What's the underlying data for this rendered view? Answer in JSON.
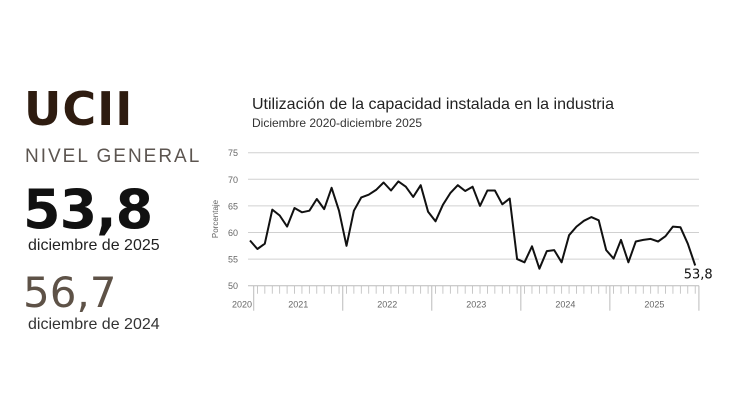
{
  "panel": {
    "brand": "UCII",
    "level_label": "NIVEL GENERAL",
    "current_value": "53,8",
    "current_period": "diciembre de 2025",
    "previous_value": "56,7",
    "previous_period": "diciembre de 2024"
  },
  "colors": {
    "brand": "#2e1c10",
    "line": "#111111",
    "grid": "#d0d0d0",
    "previous": "#5e5247"
  },
  "chart_data": {
    "type": "line",
    "title": "Utilización de la capacidad instalada en la industria",
    "subtitle": "Diciembre 2020-diciembre 2025",
    "ylabel": "Porcentaje",
    "xlabel": "",
    "ylim": [
      50,
      75
    ],
    "yticks": [
      "50",
      "55",
      "60",
      "65",
      "70",
      "75"
    ],
    "year_labels": [
      "2020",
      "2021",
      "2022",
      "2023",
      "2024",
      "2025"
    ],
    "grid": true,
    "x_start": "2020-12",
    "x_end": "2025-12",
    "frequency": "monthly",
    "end_label": "53,8",
    "values": [
      58.5,
      56.9,
      57.9,
      64.3,
      63.2,
      61.1,
      64.6,
      63.8,
      64.1,
      66.3,
      64.4,
      68.4,
      64.1,
      57.5,
      64.1,
      66.6,
      67.1,
      68.0,
      69.4,
      67.9,
      69.6,
      68.6,
      66.7,
      68.9,
      63.9,
      62.1,
      65.2,
      67.4,
      68.9,
      67.8,
      68.6,
      65.0,
      67.9,
      67.9,
      65.3,
      66.4,
      55.0,
      54.4,
      57.4,
      53.2,
      56.5,
      56.7,
      54.4,
      59.5,
      61.1,
      62.2,
      62.9,
      62.3,
      56.7,
      55.1,
      58.6,
      54.4,
      58.3,
      58.6,
      58.8,
      58.3,
      59.3,
      61.1,
      61.0,
      57.9,
      53.8
    ]
  }
}
